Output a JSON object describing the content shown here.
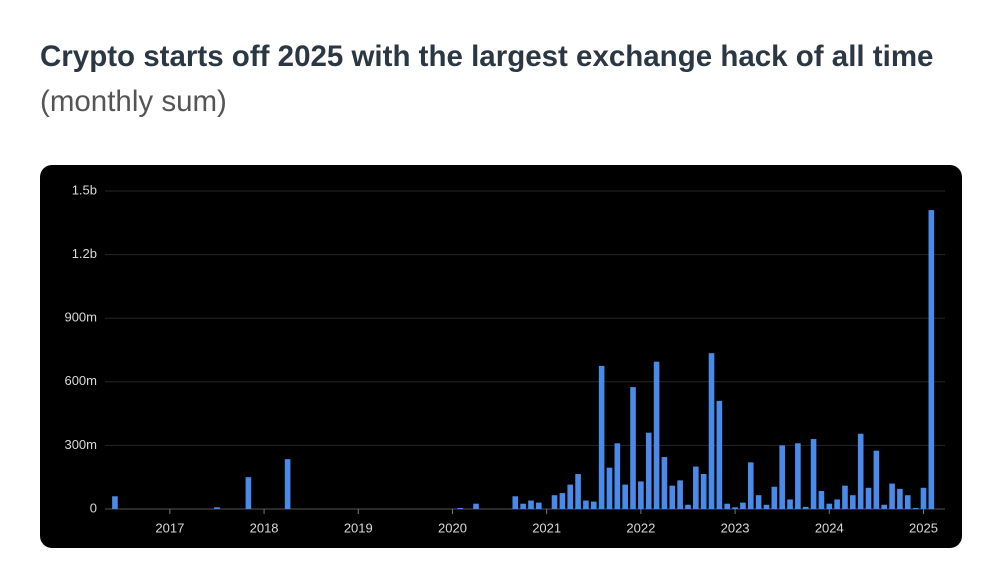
{
  "chart_data": {
    "type": "bar",
    "title": "Crypto starts off 2025 with the largest exchange hack of all time",
    "subtitle": "(monthly sum)",
    "color": "#4a8ae8",
    "grid": true,
    "ylim": [
      0,
      1500
    ],
    "yticks": [
      0,
      {
        "value": 300,
        "label": "300m"
      },
      {
        "value": 600,
        "label": "600m"
      },
      {
        "value": 900,
        "label": "900m"
      },
      {
        "value": 1200,
        "label": "1.2b"
      },
      {
        "value": 1500,
        "label": "1.5b"
      }
    ],
    "categories": [
      null,
      null,
      null,
      null,
      null,
      null,
      null,
      "2017",
      null,
      null,
      null,
      null,
      null,
      null,
      null,
      null,
      null,
      null,
      null,
      "2018",
      null,
      null,
      null,
      null,
      null,
      null,
      null,
      null,
      null,
      null,
      null,
      "2019",
      null,
      null,
      null,
      null,
      null,
      null,
      null,
      null,
      null,
      null,
      null,
      "2020",
      null,
      null,
      null,
      null,
      null,
      null,
      null,
      null,
      null,
      null,
      null,
      "2021",
      null,
      null,
      null,
      null,
      null,
      null,
      null,
      null,
      null,
      null,
      null,
      "2022",
      null,
      null,
      null,
      null,
      null,
      null,
      null,
      null,
      null,
      null,
      null,
      "2023",
      null,
      null,
      null,
      null,
      null,
      null,
      null,
      null,
      null,
      null,
      null,
      "2024",
      null,
      null,
      null,
      null,
      null,
      null,
      null,
      null,
      null,
      null,
      null,
      "2025",
      null
    ],
    "values": [
      60,
      0,
      0,
      0,
      0,
      0,
      0,
      0,
      0,
      0,
      0,
      0,
      0,
      8,
      0,
      0,
      0,
      150,
      0,
      0,
      0,
      0,
      235,
      0,
      0,
      0,
      0,
      0,
      0,
      0,
      0,
      0,
      0,
      0,
      0,
      0,
      0,
      0,
      0,
      0,
      0,
      0,
      0,
      0,
      5,
      0,
      25,
      0,
      0,
      0,
      0,
      60,
      25,
      40,
      30,
      0,
      65,
      75,
      115,
      165,
      40,
      35,
      675,
      195,
      310,
      115,
      575,
      130,
      360,
      695,
      245,
      110,
      135,
      20,
      200,
      165,
      735,
      510,
      25,
      8,
      30,
      220,
      65,
      20,
      105,
      300,
      45,
      310,
      10,
      330,
      85,
      25,
      45,
      110,
      65,
      355,
      100,
      275,
      20,
      120,
      95,
      65,
      5,
      100,
      1410
    ]
  }
}
